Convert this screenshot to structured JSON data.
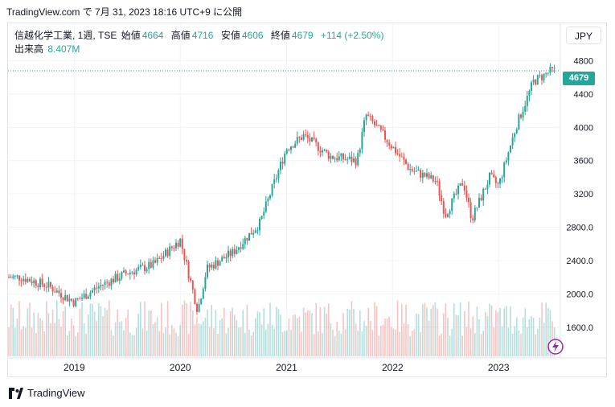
{
  "header": {
    "timestamp_text": "TradingView.com で 7月 31, 2023 18:16 UTC+9 に公開"
  },
  "legend": {
    "symbol": "信越化学工業, 1週, TSE",
    "open_label": "始値",
    "open": "4664",
    "high_label": "高値",
    "high": "4716",
    "low_label": "安値",
    "low": "4606",
    "close_label": "終値",
    "close": "4679",
    "change": "+114 (+2.50%)",
    "volume_label": "出来高",
    "volume": "8.407M"
  },
  "currency_button": "JPY",
  "last_price_badge": "4679",
  "footer": {
    "brand": "TradingView"
  },
  "colors": {
    "up": "#26a69a",
    "down": "#ef5350",
    "grid": "#f0f3fa",
    "text": "#131722"
  },
  "icons": [
    "tradingview-logo-icon",
    "lightning-icon"
  ],
  "chart_data": {
    "type": "candlestick",
    "x_ticks": [
      "2019",
      "2020",
      "2021",
      "2022",
      "2023"
    ],
    "y_ticks": [
      "1600.0",
      "2000.0",
      "2400.0",
      "2800.0",
      "3200",
      "3600",
      "4000",
      "4400",
      "4800"
    ],
    "ylim": [
      1250,
      4950
    ],
    "x": [
      "2018-07",
      "2018-10",
      "2019-01",
      "2019-04",
      "2019-07",
      "2019-10",
      "2020-01",
      "2020-03",
      "2020-04",
      "2020-07",
      "2020-10",
      "2021-01",
      "2021-03",
      "2021-06",
      "2021-09",
      "2021-10",
      "2021-12",
      "2022-03",
      "2022-06",
      "2022-07",
      "2022-09",
      "2022-10",
      "2022-12",
      "2023-01",
      "2023-03",
      "2023-05",
      "2023-07"
    ],
    "close": [
      2200,
      2100,
      1900,
      2100,
      2250,
      2350,
      2650,
      1800,
      2300,
      2500,
      2850,
      3750,
      3900,
      3650,
      3600,
      4150,
      3900,
      3500,
      3350,
      2950,
      3350,
      2900,
      3400,
      3300,
      4000,
      4550,
      4679
    ],
    "last_close": 4679,
    "volume_note": "出来高 8.407M",
    "grid": true
  }
}
